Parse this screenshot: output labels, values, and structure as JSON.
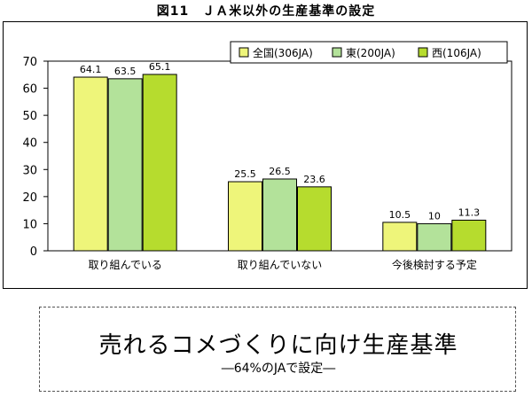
{
  "chart_data": {
    "type": "bar",
    "title": "図11　ＪＡ米以外の生産基準の設定",
    "categories": [
      "取り組んでいる",
      "取り組んでいない",
      "今後検討する予定"
    ],
    "series": [
      {
        "name": "全国(306JA)",
        "color": "#EEF57A",
        "values": [
          64.1,
          25.5,
          10.5
        ]
      },
      {
        "name": "東(200JA)",
        "color": "#B3E29A",
        "values": [
          63.5,
          26.5,
          10
        ]
      },
      {
        "name": "西(106JA)",
        "color": "#B6DC2E",
        "values": [
          65.1,
          23.6,
          11.3
        ]
      }
    ],
    "value_labels": [
      [
        "64.1",
        "25.5",
        "10.5"
      ],
      [
        "63.5",
        "26.5",
        "10"
      ],
      [
        "65.1",
        "23.6",
        "11.3"
      ]
    ],
    "ylim": [
      0,
      70
    ],
    "yticks": [
      0,
      10,
      20,
      30,
      40,
      50,
      60,
      70
    ],
    "xlabel": "",
    "ylabel": "",
    "grid": false,
    "legend_position": "top-right"
  },
  "caption": {
    "main": "売れるコメづくりに向け生産基準",
    "sub": "―64%のJAで設定―"
  }
}
